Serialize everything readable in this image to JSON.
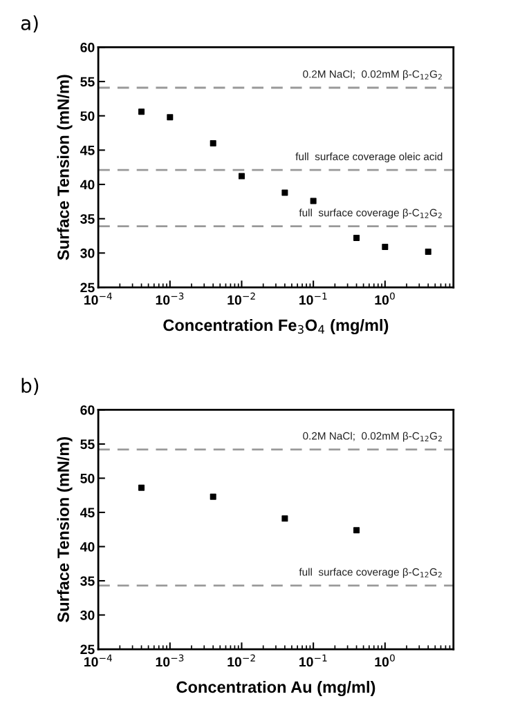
{
  "chart_data": [
    {
      "type": "scatter",
      "title": "a)",
      "xlabel": "Concentration Fe$_{3}$O$_{4}$ (mg/ml)",
      "ylabel": "Surface Tension (mN/m)",
      "log": "x",
      "marker": "square",
      "grid": false,
      "legend": false,
      "xlim": [
        0.0001,
        9
      ],
      "xticks": [
        {
          "value": 0.0001,
          "label": "10$^{−4}$"
        },
        {
          "value": 0.001,
          "label": "10$^{−3}$"
        },
        {
          "value": 0.01,
          "label": "10$^{−2}$"
        },
        {
          "value": 0.1,
          "label": "10$^{−1}$"
        },
        {
          "value": 1,
          "label": "10$^{0}$"
        }
      ],
      "ylim": [
        25,
        60
      ],
      "yticks": [
        25,
        30,
        35,
        40,
        45,
        50,
        55,
        60
      ],
      "series": [
        {
          "color": "#000000",
          "x": [
            0.0004,
            0.001,
            0.004,
            0.01,
            0.04,
            0.1,
            0.4,
            1,
            4
          ],
          "values": [
            50.6,
            49.8,
            46.0,
            41.2,
            38.8,
            37.6,
            32.2,
            30.9,
            30.2
          ]
        }
      ],
      "ref_lines": [
        {
          "axis": "y",
          "value": 54.1,
          "label": "0.2M NaCl;  0.02mM β-C$_{12}$G$_{2}$",
          "color": "#999999",
          "line_style": "dashed"
        },
        {
          "axis": "y",
          "value": 42.1,
          "label": "full  surface coverage oleic acid",
          "color": "#999999",
          "line_style": "dashed"
        },
        {
          "axis": "y",
          "value": 33.9,
          "label": "full  surface coverage β-C$_{12}$G$_{2}$",
          "color": "#999999",
          "line_style": "dashed"
        }
      ]
    },
    {
      "type": "scatter",
      "title": "b)",
      "xlabel": "Concentration Au (mg/ml)",
      "ylabel": "Surface Tension (mN/m)",
      "log": "x",
      "marker": "square",
      "grid": false,
      "legend": false,
      "xlim": [
        0.0001,
        9
      ],
      "xticks": [
        {
          "value": 0.0001,
          "label": "10$^{−4}$"
        },
        {
          "value": 0.001,
          "label": "10$^{−3}$"
        },
        {
          "value": 0.01,
          "label": "10$^{−2}$"
        },
        {
          "value": 0.1,
          "label": "10$^{−1}$"
        },
        {
          "value": 1,
          "label": "10$^{0}$"
        }
      ],
      "ylim": [
        25,
        60
      ],
      "yticks": [
        25,
        30,
        35,
        40,
        45,
        50,
        55,
        60
      ],
      "series": [
        {
          "color": "#000000",
          "x": [
            0.0004,
            0.004,
            0.04,
            0.4
          ],
          "values": [
            48.6,
            47.3,
            44.1,
            42.4
          ]
        }
      ],
      "ref_lines": [
        {
          "axis": "y",
          "value": 54.2,
          "label": "0.2M NaCl;  0.02mM β-C$_{12}$G$_{2}$",
          "color": "#999999",
          "line_style": "dashed"
        },
        {
          "axis": "y",
          "value": 34.3,
          "label": "full  surface coverage β-C$_{12}$G$_{2}$",
          "color": "#999999",
          "line_style": "dashed"
        }
      ]
    }
  ]
}
